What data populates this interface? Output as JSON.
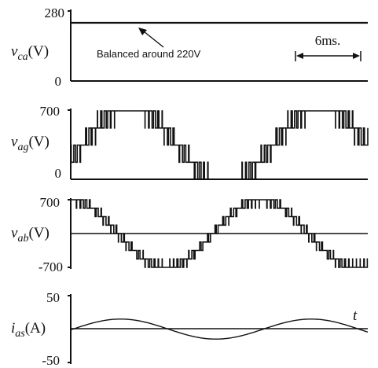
{
  "chart_data": [
    {
      "type": "line",
      "ylabel_var": "v",
      "ylabel_sub": "ca",
      "ylabel_unit": "(V)",
      "ylim": [
        0,
        280
      ],
      "yticks": [
        "280",
        "0"
      ],
      "annotation": "Balanced around 220V",
      "scale_label": "6ms.",
      "scale_ms": 6,
      "time_ms": [
        0,
        26
      ],
      "series": [
        {
          "name": "",
          "x": [
            0,
            26
          ],
          "y": [
            220,
            220
          ]
        }
      ]
    },
    {
      "type": "line",
      "ylabel_var": "v",
      "ylabel_sub": "ag",
      "ylabel_unit": "(V)",
      "ylim": [
        0,
        700
      ],
      "yticks": [
        "700",
        "0"
      ],
      "levels": [
        0,
        175,
        350,
        525,
        700
      ],
      "period_ms": 16.67,
      "waveform": "multilevel PWM, phase-to-ground, centered at 350 V"
    },
    {
      "type": "line",
      "ylabel_var": "v",
      "ylabel_sub": "ab",
      "ylabel_unit": "(V)",
      "ylim": [
        -700,
        700
      ],
      "yticks": [
        "700",
        "-700"
      ],
      "levels": [
        -700,
        -525,
        -350,
        -175,
        0,
        175,
        350,
        525,
        700
      ],
      "period_ms": 16.67,
      "waveform": "multilevel line-to-line voltage"
    },
    {
      "type": "line",
      "ylabel_var": "i",
      "ylabel_sub": "as",
      "ylabel_unit": "(A)",
      "ylim": [
        -50,
        50
      ],
      "yticks": [
        "50",
        "-50"
      ],
      "amplitude": 15,
      "period_ms": 16.67,
      "axis_label": "t"
    }
  ]
}
